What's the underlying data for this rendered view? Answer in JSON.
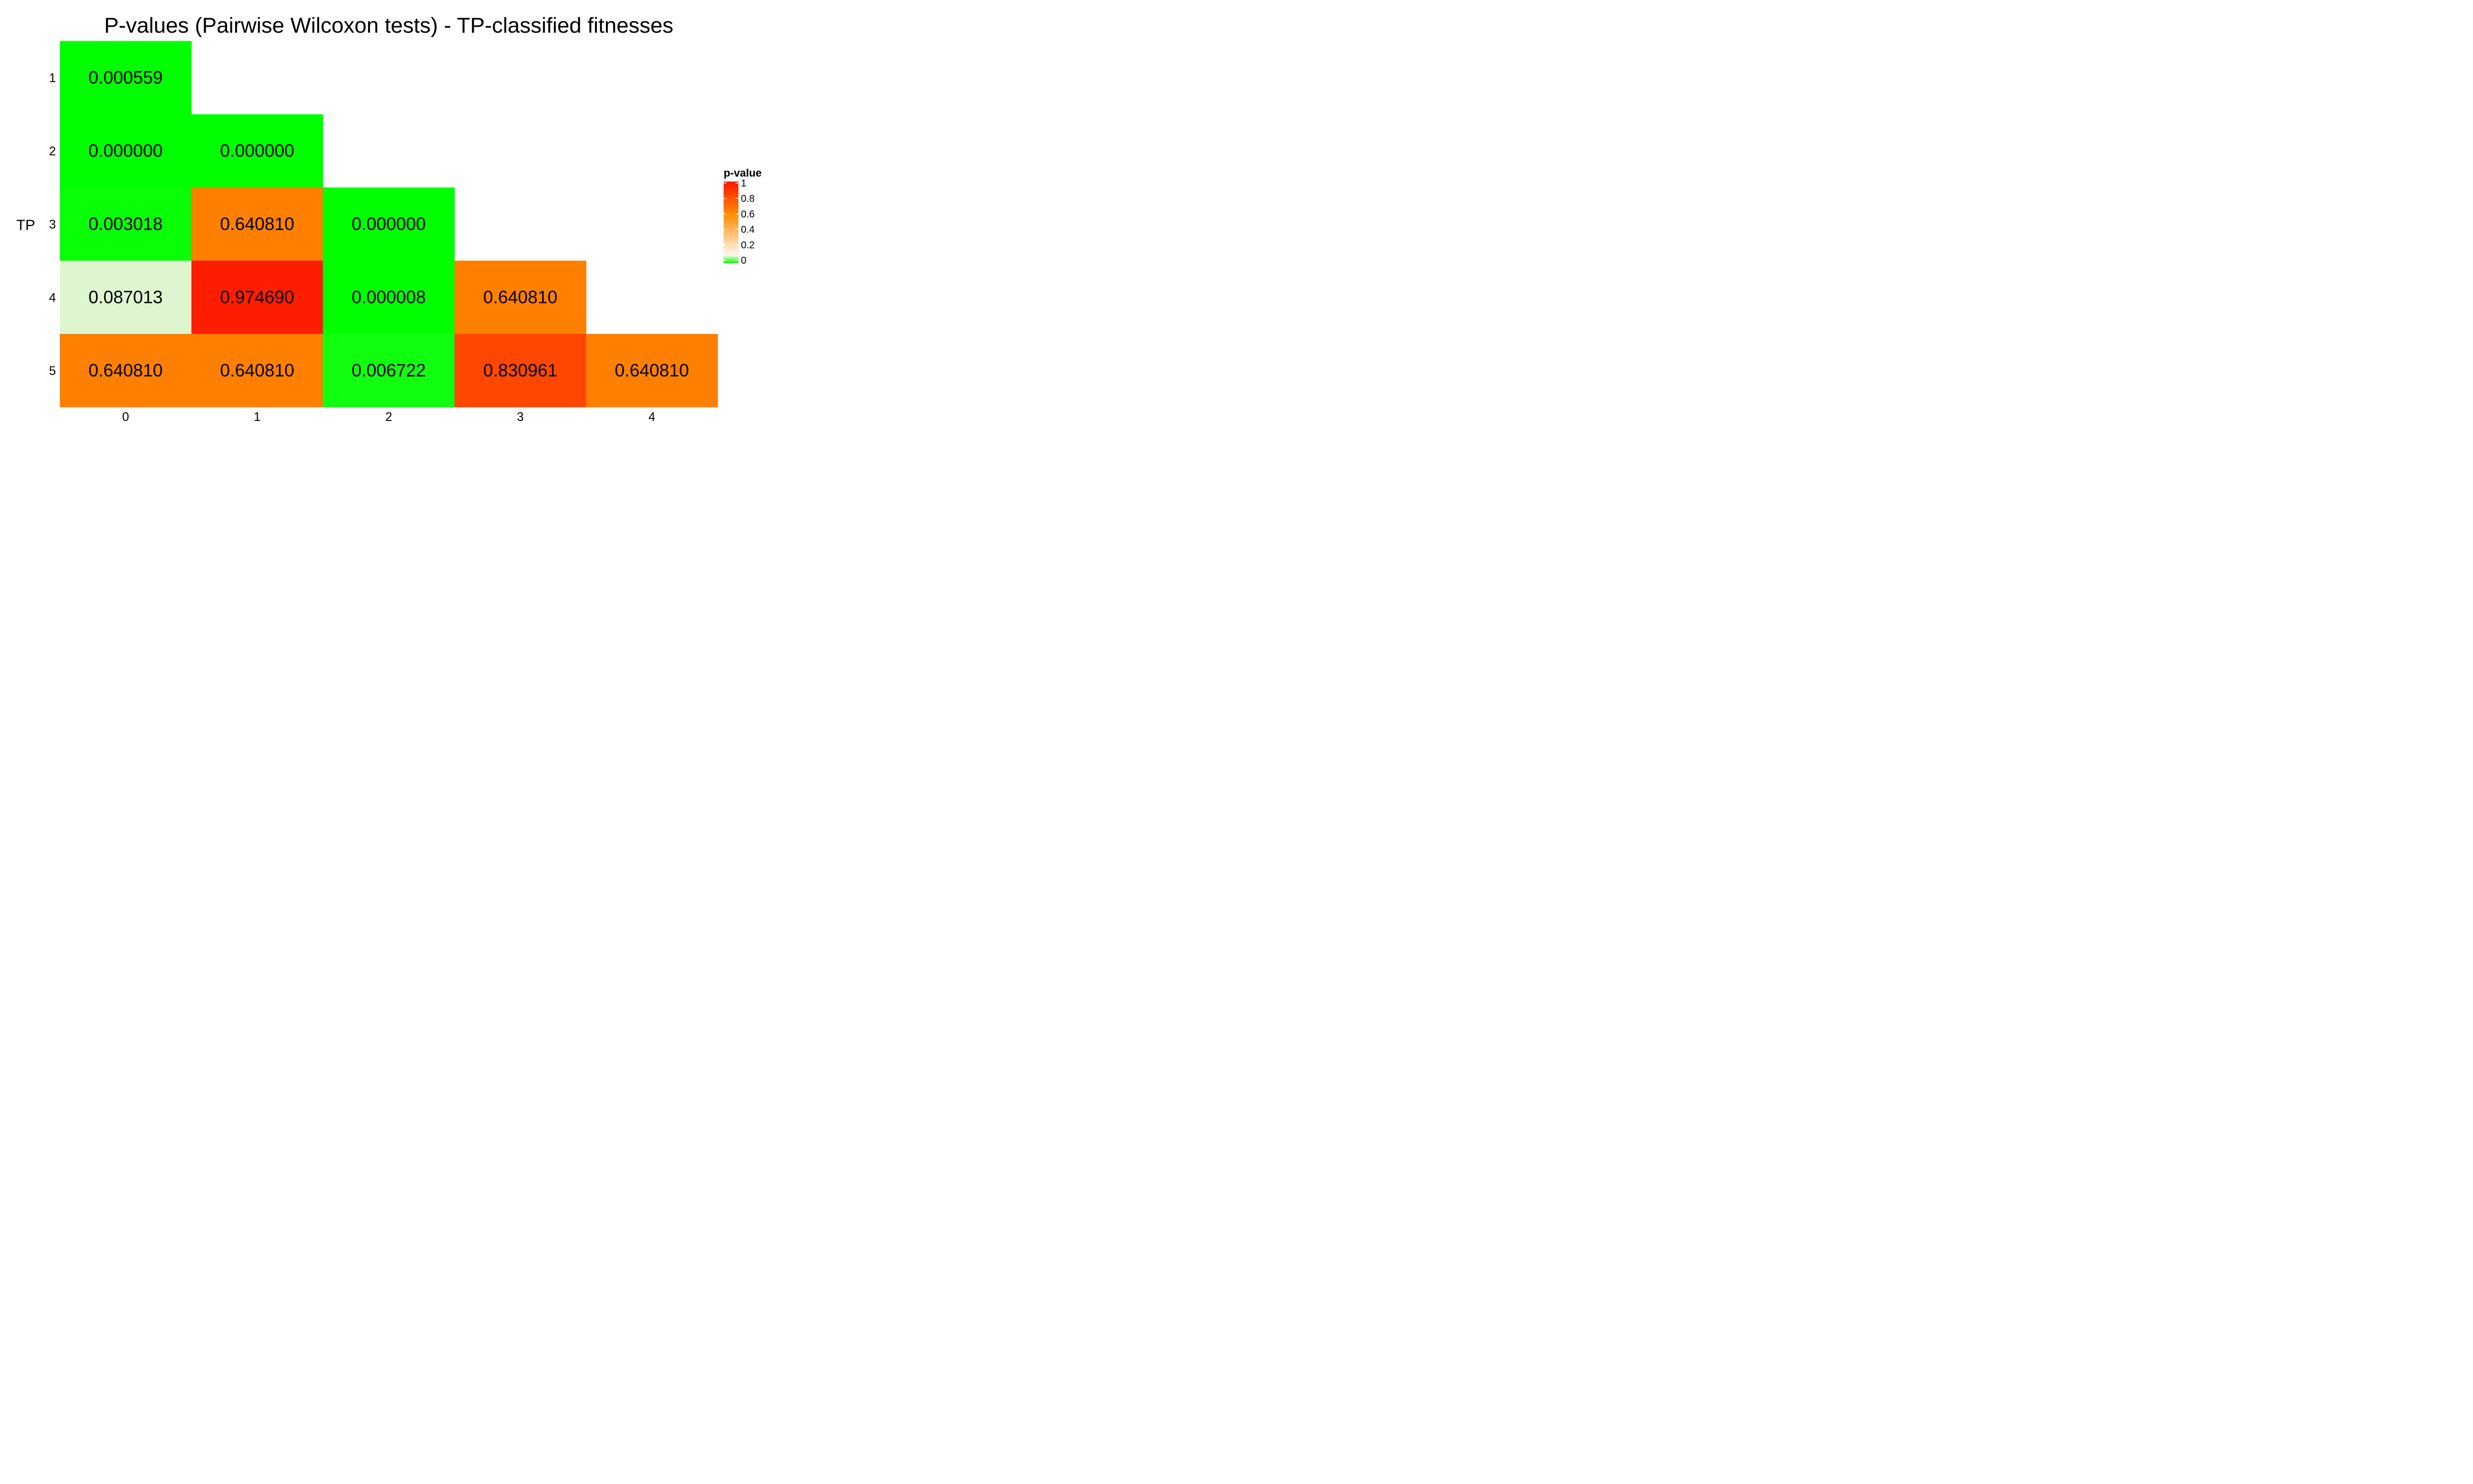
{
  "chart_data": {
    "type": "heatmap",
    "title": "P-values (Pairwise Wilcoxon tests) - TP-classified fitnesses",
    "xlabel": "",
    "ylabel": "TP",
    "x_categories": [
      "0",
      "1",
      "2",
      "3",
      "4"
    ],
    "y_categories": [
      "1",
      "2",
      "3",
      "4",
      "5"
    ],
    "cells": [
      {
        "x": "0",
        "y": "1",
        "value": 0.000559,
        "label": "0.000559"
      },
      {
        "x": "0",
        "y": "2",
        "value": 0.0,
        "label": "0.000000"
      },
      {
        "x": "1",
        "y": "2",
        "value": 0.0,
        "label": "0.000000"
      },
      {
        "x": "0",
        "y": "3",
        "value": 0.003018,
        "label": "0.003018"
      },
      {
        "x": "1",
        "y": "3",
        "value": 0.64081,
        "label": "0.640810"
      },
      {
        "x": "2",
        "y": "3",
        "value": 0.0,
        "label": "0.000000"
      },
      {
        "x": "0",
        "y": "4",
        "value": 0.087013,
        "label": "0.087013"
      },
      {
        "x": "1",
        "y": "4",
        "value": 0.97469,
        "label": "0.974690"
      },
      {
        "x": "2",
        "y": "4",
        "value": 8e-06,
        "label": "0.000008"
      },
      {
        "x": "3",
        "y": "4",
        "value": 0.64081,
        "label": "0.640810"
      },
      {
        "x": "0",
        "y": "5",
        "value": 0.64081,
        "label": "0.640810"
      },
      {
        "x": "1",
        "y": "5",
        "value": 0.64081,
        "label": "0.640810"
      },
      {
        "x": "2",
        "y": "5",
        "value": 0.006722,
        "label": "0.006722"
      },
      {
        "x": "3",
        "y": "5",
        "value": 0.830961,
        "label": "0.830961"
      },
      {
        "x": "4",
        "y": "5",
        "value": 0.64081,
        "label": "0.640810"
      }
    ],
    "legend": {
      "title": "p-value",
      "ticks": [
        "0",
        "0.2",
        "0.4",
        "0.6",
        "0.8",
        "1"
      ],
      "tick_values": [
        0,
        0.2,
        0.4,
        0.6,
        0.8,
        1
      ],
      "placement": "right"
    },
    "color_scale": [
      {
        "value": 0,
        "color": "#00ff00"
      },
      {
        "value": 0.1,
        "color": "#fff5ee"
      },
      {
        "value": 0.6,
        "color": "#ff8c00"
      },
      {
        "value": 1,
        "color": "#ff1500"
      }
    ],
    "grid": false
  }
}
